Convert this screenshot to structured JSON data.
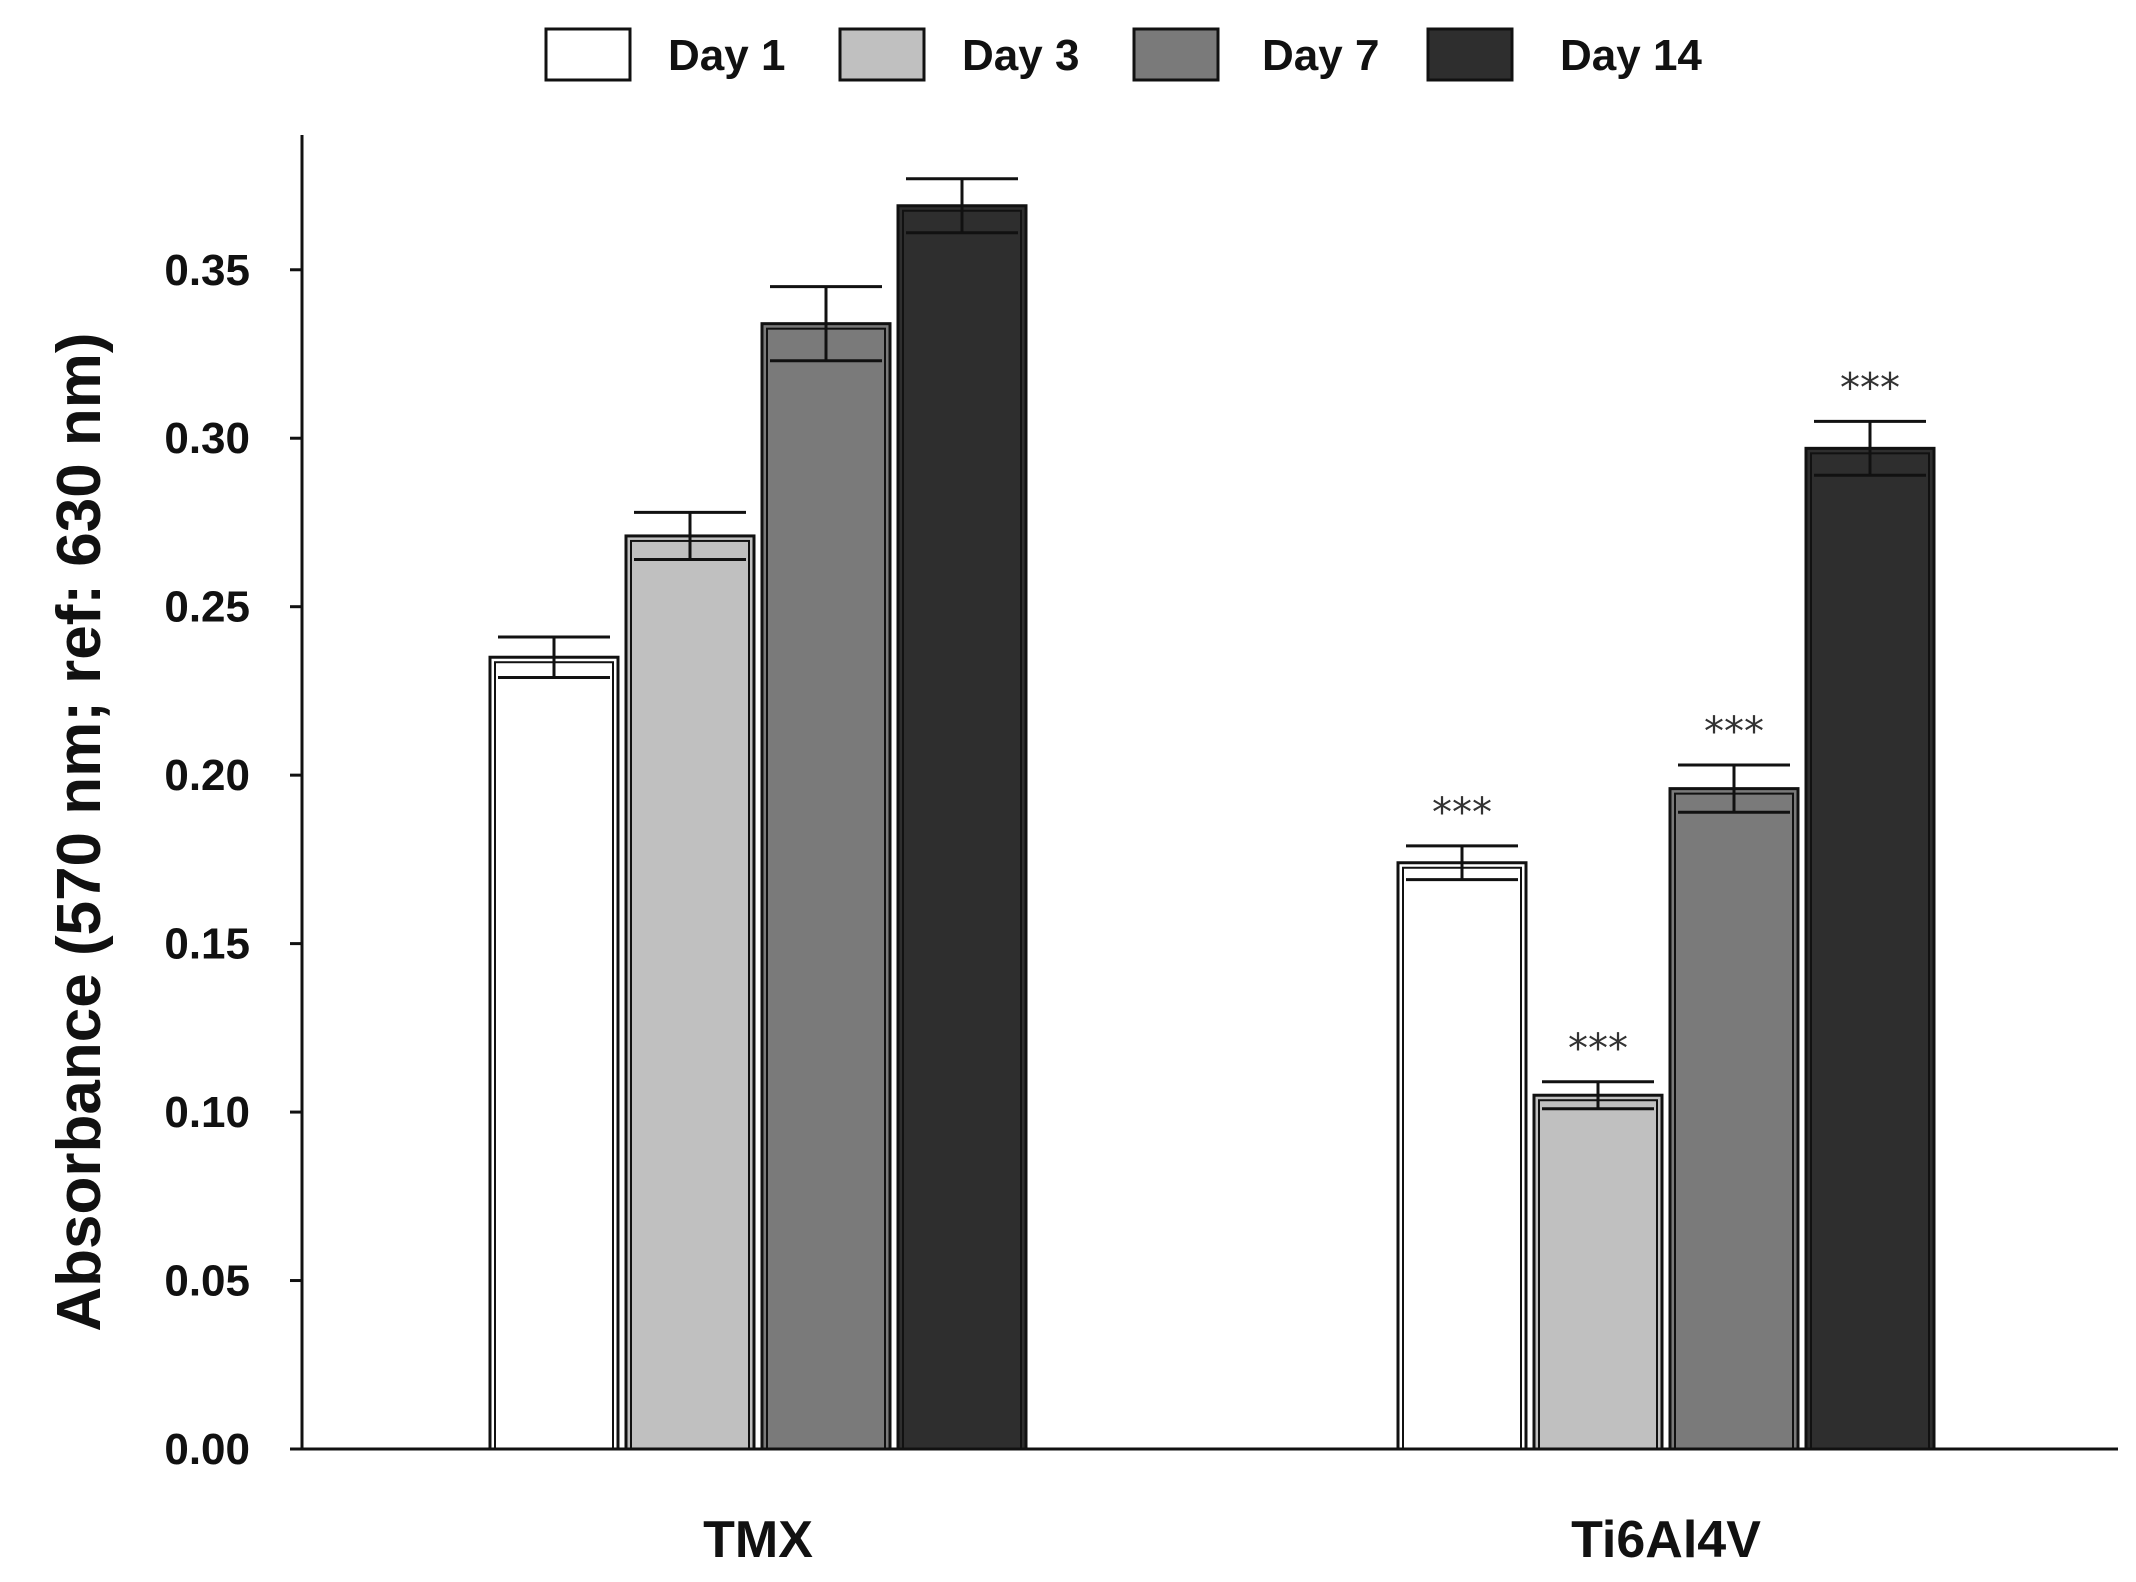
{
  "chart_data": {
    "type": "bar",
    "title": "",
    "xlabel": "",
    "ylabel": "Absorbance (570 nm; ref: 630 nm)",
    "ylim": [
      0,
      0.39
    ],
    "yticks": [
      0.0,
      0.05,
      0.1,
      0.15,
      0.2,
      0.25,
      0.3,
      0.35
    ],
    "ytick_labels": [
      "0.00",
      "0.05",
      "0.10",
      "0.15",
      "0.20",
      "0.25",
      "0.30",
      "0.35"
    ],
    "categories": [
      "TMX",
      "Ti6Al4V"
    ],
    "legend_position": "top-center",
    "grid": false,
    "series": [
      {
        "name": "Day 1",
        "color": "#ffffff",
        "values": [
          0.235,
          0.174
        ],
        "errors": [
          0.006,
          0.005
        ],
        "significance": [
          "",
          "***"
        ]
      },
      {
        "name": "Day 3",
        "color": "#c0c0c0",
        "values": [
          0.271,
          0.105
        ],
        "errors": [
          0.007,
          0.004
        ],
        "significance": [
          "",
          "***"
        ]
      },
      {
        "name": "Day 7",
        "color": "#7a7a7a",
        "values": [
          0.334,
          0.196
        ],
        "errors": [
          0.011,
          0.007
        ],
        "significance": [
          "",
          "***"
        ]
      },
      {
        "name": "Day 14",
        "color": "#2e2e2e",
        "values": [
          0.369,
          0.297
        ],
        "errors": [
          0.008,
          0.008
        ],
        "significance": [
          "",
          "***"
        ]
      }
    ]
  }
}
